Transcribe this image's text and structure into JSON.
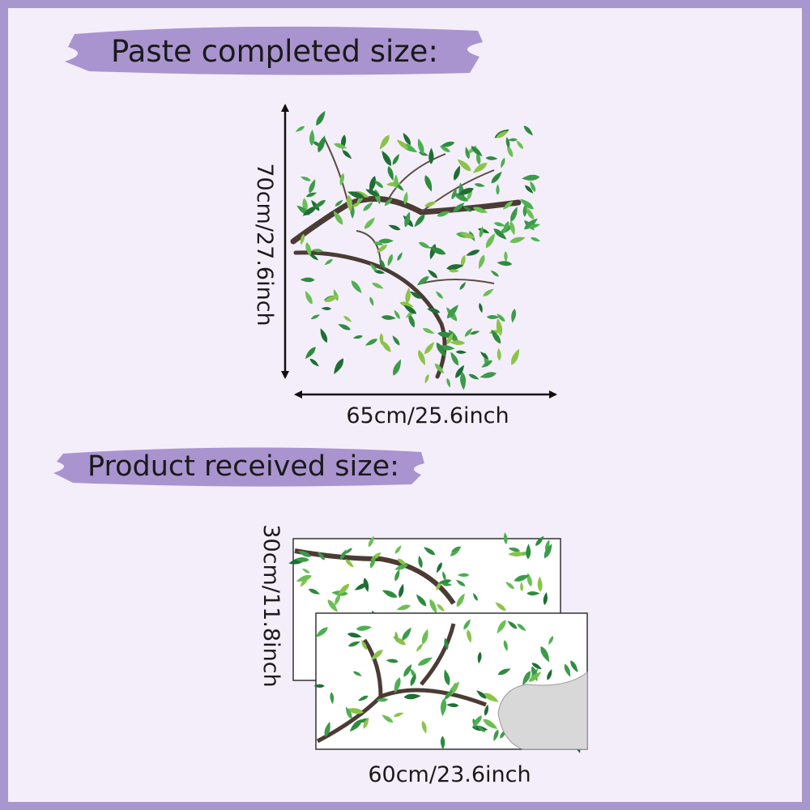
{
  "header": {
    "title": "Paste completed size:"
  },
  "completed": {
    "height": "70cm/27.6inch",
    "width": "65cm/25.6inch"
  },
  "received": {
    "title": "Product  received size:",
    "height": "30cm/11.8inch",
    "width": "60cm/23.6inch"
  }
}
